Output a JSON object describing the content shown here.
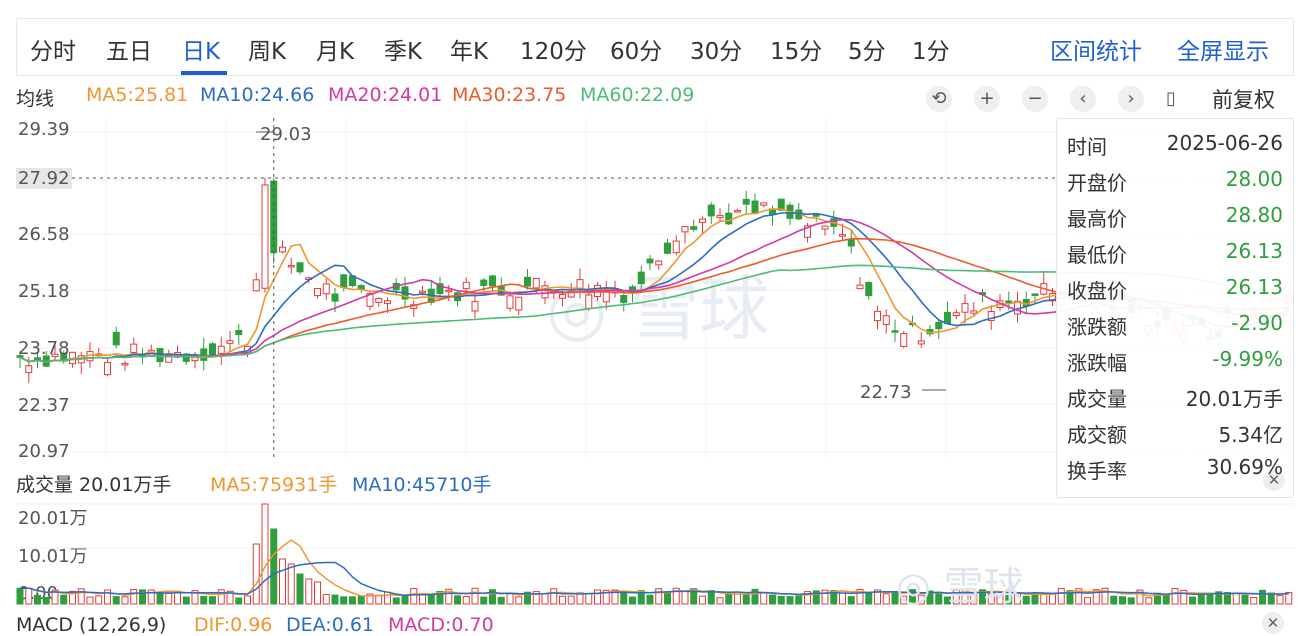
{
  "tabs": [
    "分时",
    "五日",
    "日K",
    "周K",
    "月K",
    "季K",
    "年K",
    "120分",
    "60分",
    "30分",
    "15分",
    "5分",
    "1分"
  ],
  "active_tab": "日K",
  "right_tabs": [
    "区间统计",
    "全屏显示"
  ],
  "ma_legend": {
    "label": "均线",
    "items": [
      {
        "text": "MA5:25.81",
        "color": "#f0962f"
      },
      {
        "text": "MA10:24.66",
        "color": "#2b6cc4"
      },
      {
        "text": "MA20:24.01",
        "color": "#d13aa3"
      },
      {
        "text": "MA30:23.75",
        "color": "#ef5a2c"
      },
      {
        "text": "MA60:22.09",
        "color": "#4cbd78"
      }
    ]
  },
  "controls": {
    "icons": [
      "undo-icon",
      "zoom-in-icon",
      "zoom-out-icon",
      "prev-icon",
      "next-icon",
      "candle-icon"
    ],
    "glyphs": [
      "⟲",
      "+",
      "−",
      "‹",
      "›",
      "▯"
    ],
    "fuquan_label": "前复权"
  },
  "y_axis_labels": [
    "29.39",
    "27.92",
    "26.58",
    "25.18",
    "23.78",
    "22.37",
    "20.97"
  ],
  "crosshair_price": "27.92",
  "annotations": {
    "high": "29.03",
    "low": "22.73"
  },
  "volume": {
    "title": "成交量 20.01万手",
    "ma5": "MA5:75931手",
    "ma10": "MA10:45710手",
    "y_labels": [
      "20.01万",
      "10.01万",
      "0.00"
    ]
  },
  "macd": {
    "title": "MACD (12,26,9)",
    "dif": "DIF:0.96",
    "dea": "DEA:0.61",
    "macd": "MACD:0.70"
  },
  "tooltip": {
    "rows": [
      {
        "k": "时间",
        "v": "2025-06-26",
        "green": false
      },
      {
        "k": "开盘价",
        "v": "28.00",
        "green": true
      },
      {
        "k": "最高价",
        "v": "28.80",
        "green": true
      },
      {
        "k": "最低价",
        "v": "26.13",
        "green": true
      },
      {
        "k": "收盘价",
        "v": "26.13",
        "green": true
      },
      {
        "k": "涨跌额",
        "v": "-2.90",
        "green": true
      },
      {
        "k": "涨跌幅",
        "v": "-9.99%",
        "green": true
      },
      {
        "k": "成交量",
        "v": "20.01万手",
        "green": false
      },
      {
        "k": "成交额",
        "v": "5.34亿",
        "green": false
      },
      {
        "k": "换手率",
        "v": "30.69%",
        "green": false
      }
    ]
  },
  "colors": {
    "up": "#e23b3b",
    "down": "#2e9e3e",
    "accent": "#1f5fd1"
  }
}
